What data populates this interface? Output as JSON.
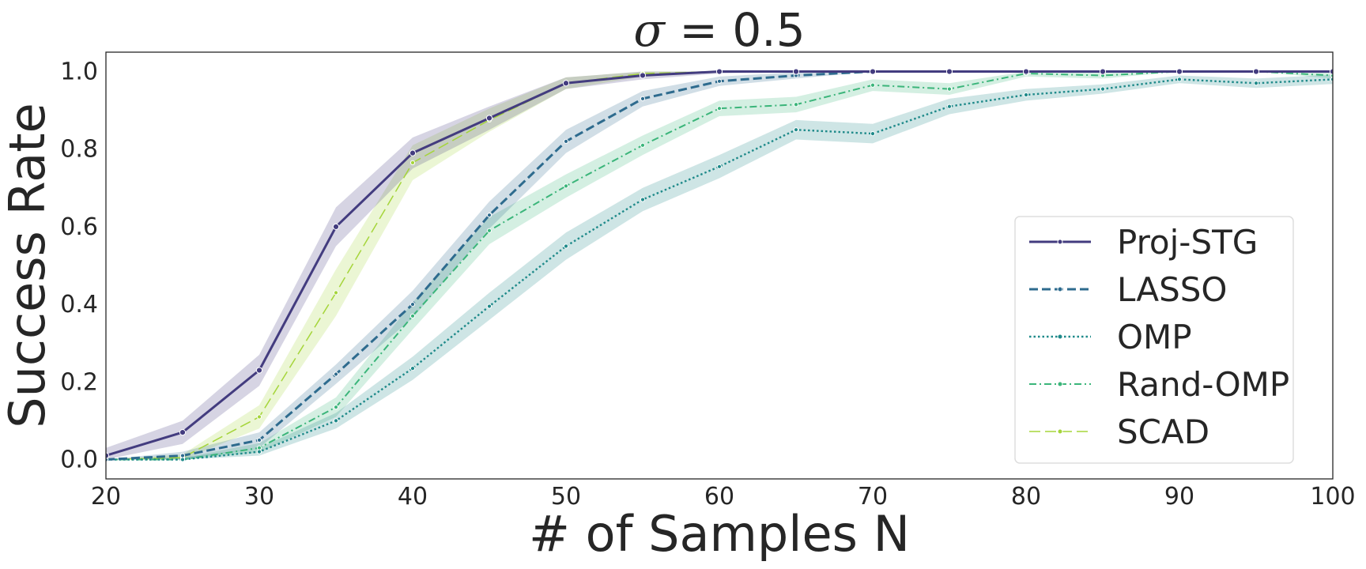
{
  "chart_data": {
    "type": "line",
    "title_symbol": "σ",
    "title_rest": " = 0.5",
    "xlabel": "# of Samples N",
    "ylabel": "Success Rate",
    "xlim": [
      20,
      100
    ],
    "ylim": [
      -0.05,
      1.05
    ],
    "xticks": [
      "20",
      "30",
      "40",
      "50",
      "60",
      "70",
      "80",
      "90",
      "100"
    ],
    "yticks": [
      "0.0",
      "0.2",
      "0.4",
      "0.6",
      "0.8",
      "1.0"
    ],
    "legend_position": "lower-right",
    "x": [
      20,
      25,
      30,
      35,
      40,
      45,
      50,
      55,
      60,
      65,
      70,
      75,
      80,
      85,
      90,
      95,
      100
    ],
    "series": [
      {
        "name": "Proj-STG",
        "color": "#433c7f",
        "dash": "solid",
        "values": [
          0.01,
          0.07,
          0.23,
          0.6,
          0.79,
          0.88,
          0.97,
          0.99,
          1.0,
          1.0,
          1.0,
          1.0,
          1.0,
          1.0,
          1.0,
          1.0,
          1.0
        ],
        "band": [
          0.02,
          0.03,
          0.04,
          0.05,
          0.04,
          0.03,
          0.015,
          0.01,
          0.005,
          0.0,
          0.0,
          0.0,
          0.0,
          0.0,
          0.0,
          0.0,
          0.0
        ]
      },
      {
        "name": "LASSO",
        "color": "#2e6b8e",
        "dash": "dashed",
        "values": [
          0.0,
          0.01,
          0.05,
          0.22,
          0.4,
          0.63,
          0.82,
          0.93,
          0.975,
          0.99,
          1.0,
          1.0,
          1.0,
          1.0,
          1.0,
          1.0,
          1.0
        ],
        "band": [
          0.0,
          0.01,
          0.02,
          0.025,
          0.035,
          0.035,
          0.03,
          0.02,
          0.012,
          0.008,
          0.0,
          0.0,
          0.0,
          0.0,
          0.0,
          0.0,
          0.0
        ]
      },
      {
        "name": "OMP",
        "color": "#1f8a8a",
        "dash": "dotted",
        "values": [
          0.0,
          0.0,
          0.02,
          0.1,
          0.235,
          0.395,
          0.55,
          0.67,
          0.755,
          0.85,
          0.84,
          0.91,
          0.94,
          0.955,
          0.98,
          0.97,
          0.98
        ],
        "band": [
          0.0,
          0.005,
          0.01,
          0.02,
          0.03,
          0.035,
          0.035,
          0.03,
          0.03,
          0.025,
          0.025,
          0.02,
          0.015,
          0.012,
          0.01,
          0.012,
          0.012
        ]
      },
      {
        "name": "Rand-OMP",
        "color": "#3bb57a",
        "dash": "dashdot",
        "values": [
          0.0,
          0.0,
          0.03,
          0.135,
          0.37,
          0.59,
          0.705,
          0.81,
          0.905,
          0.915,
          0.965,
          0.955,
          0.995,
          0.99,
          1.0,
          1.0,
          0.99
        ],
        "band": [
          0.0,
          0.005,
          0.012,
          0.025,
          0.035,
          0.035,
          0.03,
          0.025,
          0.02,
          0.02,
          0.015,
          0.015,
          0.008,
          0.008,
          0.0,
          0.0,
          0.008
        ]
      },
      {
        "name": "SCAD",
        "color": "#a5d53a",
        "dash": "longdash",
        "values": [
          0.0,
          0.005,
          0.11,
          0.43,
          0.765,
          0.875,
          0.97,
          0.995,
          1.0,
          1.0,
          1.0,
          1.0,
          1.0,
          1.0,
          1.0,
          1.0,
          1.0
        ],
        "band": [
          0.0,
          0.008,
          0.03,
          0.06,
          0.045,
          0.03,
          0.015,
          0.008,
          0.0,
          0.0,
          0.0,
          0.0,
          0.0,
          0.0,
          0.0,
          0.0,
          0.0
        ]
      }
    ]
  }
}
